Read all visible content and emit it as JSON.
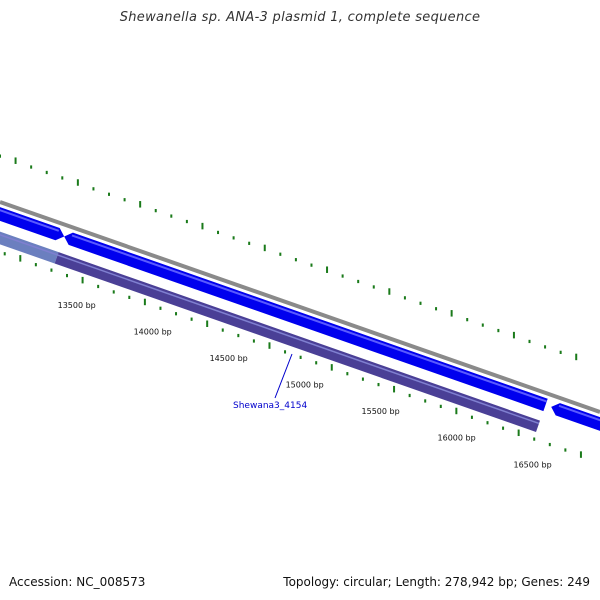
{
  "title": "Shewanella sp. ANA-3 plasmid 1, complete sequence",
  "footer": {
    "accession": "Accession: NC_008573",
    "topology": "Topology: circular; Length: 278,942 bp; Genes: 249"
  },
  "ticks": [
    {
      "label": "13500 bp",
      "bp": 13500
    },
    {
      "label": "14000 bp",
      "bp": 14000
    },
    {
      "label": "14500 bp",
      "bp": 14500
    },
    {
      "label": "15000 bp",
      "bp": 15000
    },
    {
      "label": "15500 bp",
      "bp": 15500
    },
    {
      "label": "16000 bp",
      "bp": 16000
    },
    {
      "label": "16500 bp",
      "bp": 16500
    }
  ],
  "gene_label": "Shewana3_4154",
  "colors": {
    "backbone": "#8a8a8a",
    "forward_gene": "#0000ee",
    "forward_gene_light": "#5a5aff",
    "reverse_gene": "#4a3f96",
    "reverse_gene_light": "#6b7fbf",
    "gc_skew": "#1a7a1a",
    "label_line": "#0000cc"
  }
}
